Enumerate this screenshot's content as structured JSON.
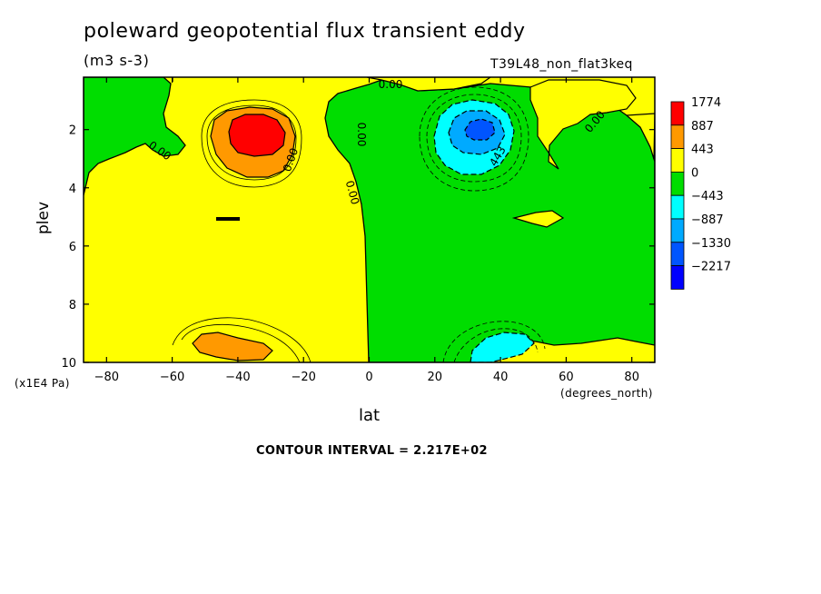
{
  "header": {
    "title": "poleward geopotential flux transient eddy",
    "units": "(m3 s-3)",
    "run_id": "T39L48_non_flat3keq"
  },
  "footer": {
    "contour_interval": "CONTOUR INTERVAL = 2.217E+02"
  },
  "chart_data": {
    "type": "heatmap",
    "title": "poleward geopotential flux transient eddy",
    "subtitle": "(m3 s-3)",
    "annotation": "T39L48_non_flat3keq",
    "xlabel": "lat",
    "xunit": "(degrees_north)",
    "ylabel": "plev",
    "yunit": "(x1E4 Pa)",
    "xlim": [
      -87,
      87
    ],
    "ylim": [
      10,
      0.2
    ],
    "y_reversed": true,
    "xticks": [
      -80,
      -60,
      -40,
      -20,
      0,
      20,
      40,
      60,
      80
    ],
    "xtick_labels": [
      "−80",
      "−60",
      "−40",
      "−20",
      "0",
      "20",
      "40",
      "60",
      "80"
    ],
    "yticks": [
      2,
      4,
      6,
      8,
      10
    ],
    "ytick_labels": [
      "2",
      "4",
      "6",
      "8",
      "10"
    ],
    "contour_interval": 221.7,
    "contour_labels": [
      "0.00",
      "0.00",
      "0.00",
      "0.00",
      "0.00",
      "0.00",
      "443",
      "-443"
    ],
    "colorbar": {
      "labels": [
        "1774",
        "887",
        "443",
        "0",
        "−443",
        "−887",
        "−1330",
        "−2217"
      ],
      "colors": [
        "#ff0000",
        "#ff9900",
        "#ffff00",
        "#00dd00",
        "#00ffff",
        "#00aaff",
        "#0055ff",
        "#0000ff"
      ]
    },
    "features": [
      {
        "name": "southern upper max",
        "lat": -33,
        "plev": 2.0,
        "value": 1774
      },
      {
        "name": "northern upper min",
        "lat": 33,
        "plev": 2.0,
        "value": -1330
      },
      {
        "name": "southern surface max",
        "lat": -38,
        "plev": 9.5,
        "value": 443
      },
      {
        "name": "northern surface min",
        "lat": 38,
        "plev": 9.5,
        "value": -443
      }
    ]
  }
}
